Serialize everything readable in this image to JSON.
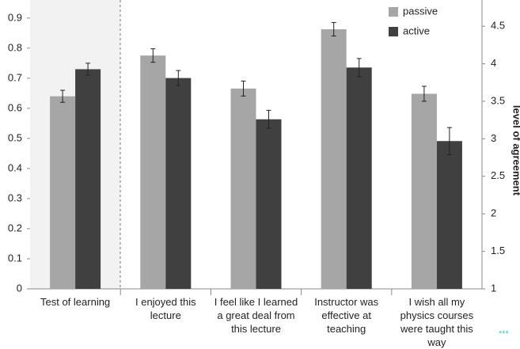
{
  "chart_data": {
    "type": "bar",
    "categories": [
      "Test of learning",
      "I enjoyed this lecture",
      "I feel like I learned a great deal from this lecture",
      "Instructor was effective at teaching",
      "I wish all my physics courses were taught this way"
    ],
    "category_axis": [
      "y",
      "y2",
      "y2",
      "y2",
      "y2"
    ],
    "series": [
      {
        "name": "passive",
        "color": "#a6a6a6",
        "values": [
          0.64,
          4.11,
          3.67,
          4.46,
          3.6
        ],
        "errors": [
          0.02,
          0.09,
          0.1,
          0.09,
          0.1
        ]
      },
      {
        "name": "active",
        "color": "#404040",
        "values": [
          0.73,
          3.81,
          3.26,
          3.95,
          2.97
        ],
        "errors": [
          0.02,
          0.1,
          0.12,
          0.12,
          0.18
        ]
      }
    ],
    "ylim": [
      0,
      0.96
    ],
    "yticks": [
      0,
      0.1,
      0.2,
      0.3,
      0.4,
      0.5,
      0.6,
      0.7,
      0.8,
      0.9
    ],
    "y2lim": [
      1,
      4.85
    ],
    "y2ticks": [
      1,
      1.5,
      2,
      2.5,
      3,
      3.5,
      4,
      4.5
    ],
    "y2label": "level of agreement",
    "annotation": "***",
    "legend": "top-right"
  }
}
